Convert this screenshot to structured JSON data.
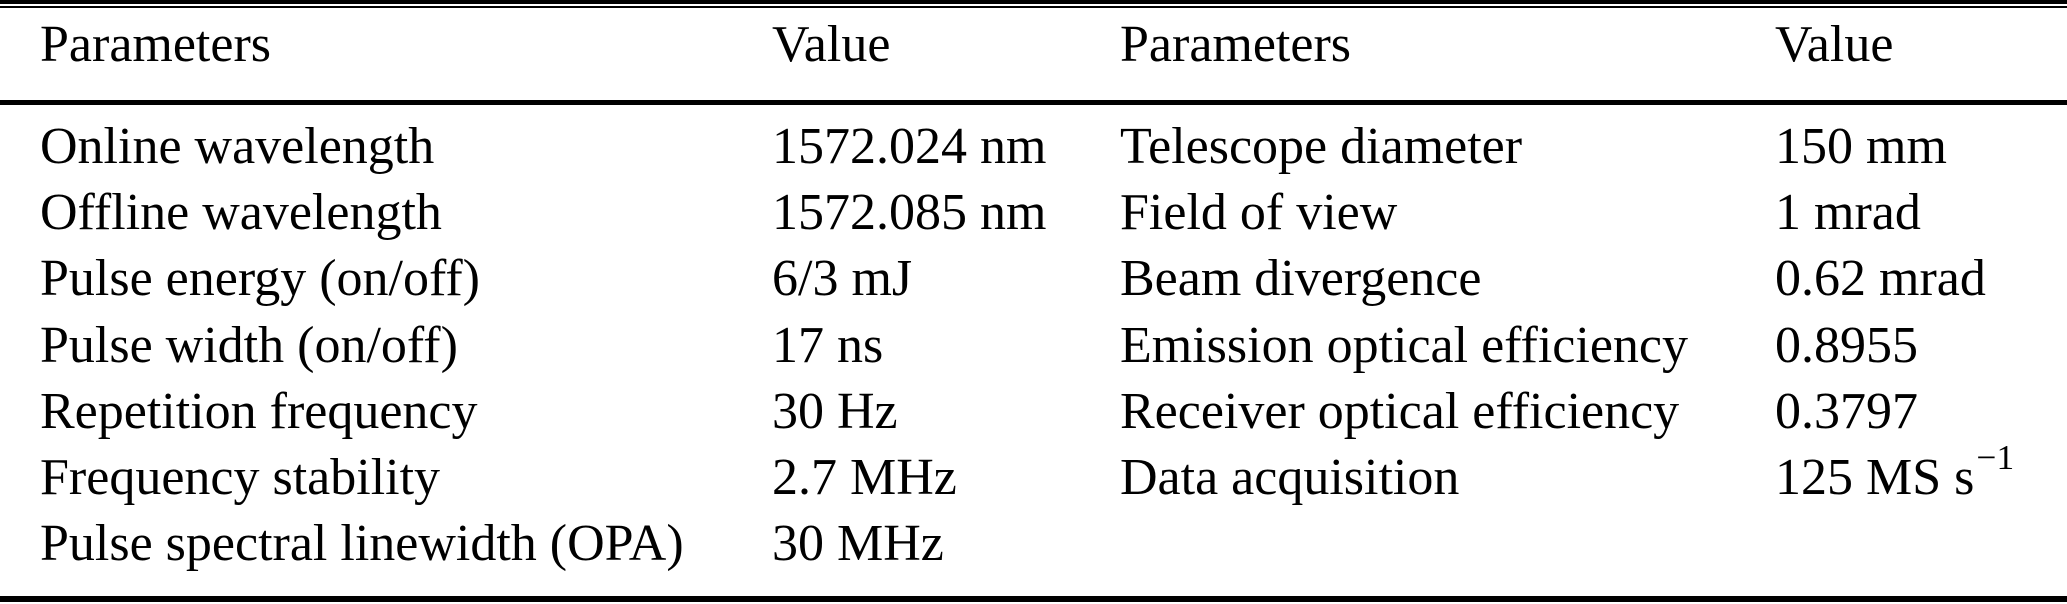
{
  "table": {
    "columns": [
      "Parameters",
      "Value",
      "Parameters",
      "Value"
    ],
    "rows": [
      {
        "p1": "Online wavelength",
        "v1": "1572.024 nm",
        "p2": "Telescope diameter",
        "v2": "150 mm"
      },
      {
        "p1": "Offline wavelength",
        "v1": "1572.085 nm",
        "p2": "Field of view",
        "v2": "1 mrad"
      },
      {
        "p1": "Pulse energy (on/off)",
        "v1": "6/3 mJ",
        "p2": "Beam divergence",
        "v2": "0.62 mrad"
      },
      {
        "p1": "Pulse width (on/off)",
        "v1": "17 ns",
        "p2": "Emission optical efficiency",
        "v2": "0.8955"
      },
      {
        "p1": "Repetition frequency",
        "v1": "30 Hz",
        "p2": "Receiver optical efficiency",
        "v2": "0.3797"
      },
      {
        "p1": "Frequency stability",
        "v1": "2.7 MHz",
        "p2": "Data acquisition",
        "v2": "125 MS s",
        "v2_sup": "−1"
      },
      {
        "p1": "Pulse spectral linewidth (OPA)",
        "v1": "30 MHz",
        "p2": "",
        "v2": ""
      }
    ],
    "colors": {
      "text": "#000000",
      "background": "#ffffff",
      "rule": "#000000"
    }
  }
}
